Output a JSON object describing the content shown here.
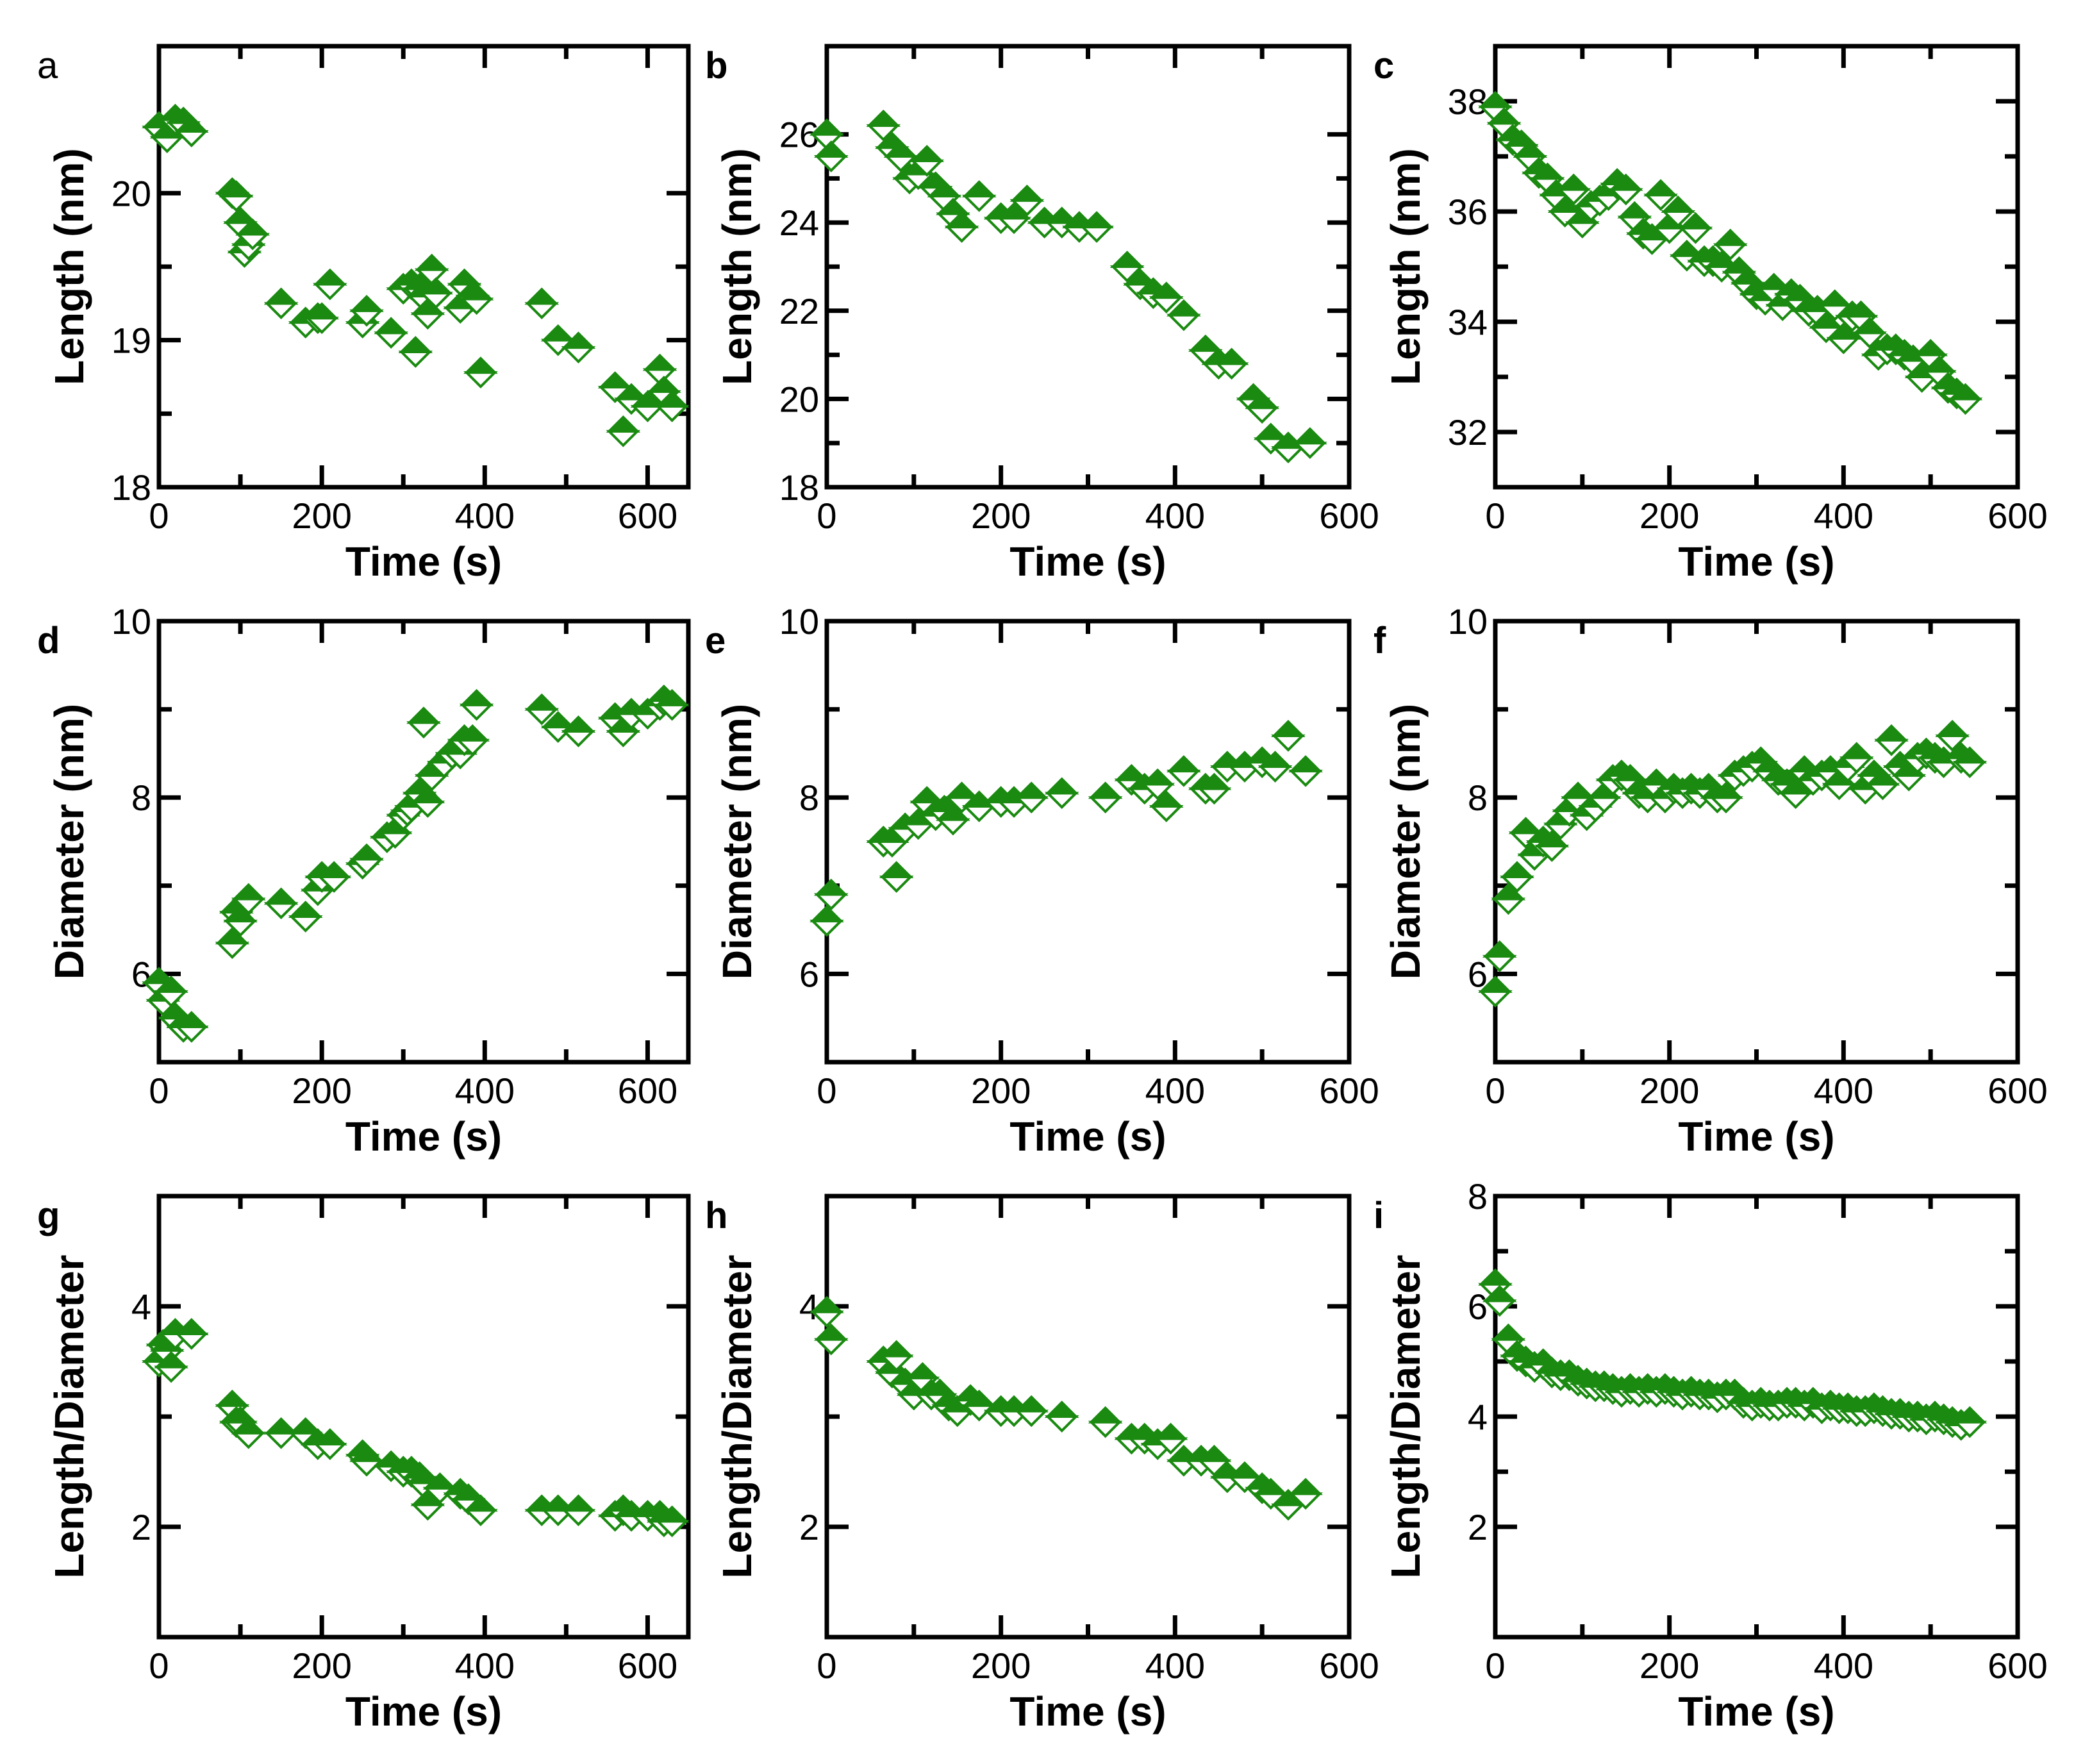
{
  "colors": {
    "marker": "#1a8a10",
    "axis": "#000000",
    "background": "#ffffff"
  },
  "marker_shape": "diamond-half-filled",
  "chart_data": [
    {
      "id": "a",
      "type": "scatter",
      "panel_label": "a",
      "xlabel": "Time (s)",
      "ylabel": "Length (nm)",
      "xlim": [
        0,
        650
      ],
      "ylim": [
        18,
        21
      ],
      "xticks": [
        0,
        200,
        400,
        600
      ],
      "xtick_labels": [
        "0",
        "200",
        "400",
        "600"
      ],
      "yticks": [
        18,
        19,
        20
      ],
      "ytick_labels": [
        "18",
        "19",
        "20"
      ],
      "x": [
        0,
        10,
        20,
        30,
        40,
        90,
        95,
        100,
        105,
        110,
        115,
        150,
        180,
        195,
        200,
        210,
        250,
        255,
        285,
        300,
        310,
        315,
        320,
        325,
        330,
        335,
        340,
        370,
        375,
        385,
        390,
        395,
        470,
        490,
        515,
        560,
        570,
        580,
        600,
        615,
        620,
        630
      ],
      "y": [
        20.45,
        20.38,
        20.5,
        20.48,
        20.42,
        20.0,
        19.98,
        19.8,
        19.6,
        19.65,
        19.72,
        19.25,
        19.12,
        19.15,
        19.15,
        19.38,
        19.12,
        19.2,
        19.05,
        19.35,
        19.38,
        18.92,
        19.35,
        19.3,
        19.18,
        19.48,
        19.32,
        19.22,
        19.38,
        19.3,
        19.28,
        18.78,
        19.25,
        19.0,
        18.95,
        18.68,
        18.38,
        18.6,
        18.55,
        18.8,
        18.65,
        18.55
      ]
    },
    {
      "id": "b",
      "type": "scatter",
      "panel_label": "b",
      "xlabel": "Time (s)",
      "ylabel": "Length (nm)",
      "xlim": [
        0,
        600
      ],
      "ylim": [
        18,
        28
      ],
      "xticks": [
        0,
        200,
        400,
        600
      ],
      "xtick_labels": [
        "0",
        "200",
        "400",
        "600"
      ],
      "yticks": [
        18,
        20,
        22,
        24,
        26
      ],
      "ytick_labels": [
        "18",
        "20",
        "22",
        "24",
        "26"
      ],
      "x": [
        0,
        5,
        65,
        75,
        85,
        95,
        105,
        115,
        125,
        135,
        145,
        155,
        175,
        200,
        215,
        230,
        250,
        270,
        290,
        310,
        345,
        360,
        375,
        390,
        410,
        435,
        450,
        465,
        490,
        500,
        510,
        530,
        555
      ],
      "y": [
        26.0,
        25.5,
        26.2,
        25.7,
        25.5,
        25.0,
        25.1,
        25.4,
        24.8,
        24.6,
        24.2,
        23.9,
        24.6,
        24.1,
        24.1,
        24.5,
        24.0,
        24.0,
        23.9,
        23.9,
        23.0,
        22.6,
        22.4,
        22.3,
        21.9,
        21.1,
        20.8,
        20.8,
        20.0,
        19.8,
        19.1,
        18.9,
        19.0
      ]
    },
    {
      "id": "c",
      "type": "scatter",
      "panel_label": "c",
      "xlabel": "Time (s)",
      "ylabel": "Length (nm)",
      "xlim": [
        0,
        600
      ],
      "ylim": [
        31,
        39
      ],
      "xticks": [
        0,
        200,
        400,
        600
      ],
      "xtick_labels": [
        "0",
        "200",
        "400",
        "600"
      ],
      "yticks": [
        32,
        34,
        36,
        38
      ],
      "ytick_labels": [
        "32",
        "34",
        "36",
        "38"
      ],
      "x": [
        0,
        10,
        20,
        30,
        40,
        50,
        60,
        70,
        80,
        90,
        100,
        110,
        120,
        130,
        140,
        150,
        160,
        170,
        180,
        190,
        200,
        210,
        220,
        230,
        240,
        250,
        260,
        270,
        280,
        290,
        300,
        310,
        320,
        330,
        340,
        350,
        360,
        370,
        380,
        390,
        400,
        410,
        420,
        430,
        440,
        450,
        460,
        470,
        480,
        490,
        500,
        510,
        520,
        530,
        540
      ],
      "y": [
        37.9,
        37.6,
        37.3,
        37.2,
        37.0,
        36.7,
        36.6,
        36.3,
        36.0,
        36.4,
        35.8,
        36.1,
        36.2,
        36.3,
        36.5,
        36.4,
        35.9,
        35.6,
        35.5,
        36.3,
        35.7,
        36.0,
        35.2,
        35.7,
        35.1,
        35.1,
        35.0,
        35.4,
        34.9,
        34.7,
        34.5,
        34.4,
        34.6,
        34.3,
        34.5,
        34.4,
        34.2,
        34.2,
        33.9,
        34.3,
        33.7,
        34.1,
        34.1,
        33.8,
        33.4,
        33.5,
        33.5,
        33.4,
        33.3,
        33.0,
        33.4,
        33.1,
        32.8,
        32.7,
        32.6
      ]
    },
    {
      "id": "d",
      "type": "scatter",
      "panel_label": "d",
      "xlabel": "Time (s)",
      "ylabel": "Diameter (nm)",
      "xlim": [
        0,
        650
      ],
      "ylim": [
        5,
        10
      ],
      "xticks": [
        0,
        200,
        400,
        600
      ],
      "xtick_labels": [
        "0",
        "200",
        "400",
        "600"
      ],
      "yticks": [
        6,
        8,
        10
      ],
      "ytick_labels": [
        "6",
        "8",
        "10"
      ],
      "x": [
        0,
        5,
        15,
        20,
        30,
        40,
        90,
        95,
        100,
        110,
        150,
        180,
        195,
        200,
        215,
        250,
        255,
        280,
        290,
        300,
        305,
        310,
        320,
        325,
        330,
        335,
        350,
        360,
        370,
        375,
        385,
        390,
        470,
        490,
        515,
        560,
        570,
        580,
        600,
        615,
        620,
        630
      ],
      "y": [
        5.9,
        5.7,
        5.8,
        5.5,
        5.4,
        5.4,
        6.35,
        6.7,
        6.6,
        6.85,
        6.8,
        6.65,
        6.95,
        7.1,
        7.1,
        7.25,
        7.3,
        7.55,
        7.6,
        7.8,
        7.85,
        7.9,
        8.05,
        8.85,
        7.95,
        8.25,
        8.4,
        8.5,
        8.5,
        8.65,
        8.65,
        9.05,
        9.0,
        8.8,
        8.75,
        8.9,
        8.75,
        8.95,
        8.95,
        9.05,
        9.1,
        9.05
      ]
    },
    {
      "id": "e",
      "type": "scatter",
      "panel_label": "e",
      "xlabel": "Time (s)",
      "ylabel": "Diameter (nm)",
      "xlim": [
        0,
        600
      ],
      "ylim": [
        5,
        10
      ],
      "xticks": [
        0,
        200,
        400,
        600
      ],
      "xtick_labels": [
        "0",
        "200",
        "400",
        "600"
      ],
      "yticks": [
        6,
        8,
        10
      ],
      "ytick_labels": [
        "6",
        "8",
        "10"
      ],
      "x": [
        0,
        5,
        65,
        75,
        80,
        90,
        105,
        115,
        125,
        135,
        145,
        155,
        175,
        200,
        215,
        235,
        270,
        320,
        350,
        365,
        380,
        390,
        410,
        435,
        445,
        460,
        480,
        500,
        515,
        530,
        550
      ],
      "y": [
        6.6,
        6.9,
        7.5,
        7.5,
        7.1,
        7.65,
        7.7,
        7.95,
        7.8,
        7.85,
        7.75,
        8.0,
        7.9,
        7.95,
        7.95,
        8.0,
        8.05,
        8.0,
        8.2,
        8.1,
        8.15,
        7.9,
        8.3,
        8.1,
        8.1,
        8.35,
        8.35,
        8.4,
        8.35,
        8.7,
        8.3
      ]
    },
    {
      "id": "f",
      "type": "scatter",
      "panel_label": "f",
      "xlabel": "Time (s)",
      "ylabel": "Diameter (nm)",
      "xlim": [
        0,
        600
      ],
      "ylim": [
        5,
        10
      ],
      "xticks": [
        0,
        200,
        400,
        600
      ],
      "xtick_labels": [
        "0",
        "200",
        "400",
        "600"
      ],
      "yticks": [
        6,
        8,
        10
      ],
      "ytick_labels": [
        "6",
        "8",
        "10"
      ],
      "x": [
        0,
        5,
        15,
        25,
        35,
        45,
        55,
        65,
        75,
        85,
        95,
        105,
        115,
        125,
        135,
        145,
        155,
        165,
        175,
        185,
        195,
        205,
        215,
        225,
        235,
        245,
        255,
        265,
        275,
        285,
        295,
        305,
        315,
        325,
        335,
        345,
        355,
        365,
        375,
        385,
        395,
        405,
        415,
        425,
        435,
        445,
        455,
        465,
        475,
        485,
        495,
        505,
        515,
        525,
        535,
        545
      ],
      "y": [
        5.8,
        6.2,
        6.85,
        7.1,
        7.6,
        7.35,
        7.5,
        7.45,
        7.7,
        7.85,
        8.0,
        7.8,
        7.9,
        8.0,
        8.2,
        8.25,
        8.2,
        8.05,
        8.0,
        8.15,
        8.0,
        8.1,
        8.05,
        8.1,
        8.05,
        8.1,
        8.0,
        8.0,
        8.25,
        8.3,
        8.35,
        8.4,
        8.3,
        8.2,
        8.15,
        8.05,
        8.3,
        8.2,
        8.25,
        8.3,
        8.15,
        8.35,
        8.45,
        8.1,
        8.25,
        8.15,
        8.65,
        8.35,
        8.25,
        8.45,
        8.5,
        8.45,
        8.4,
        8.7,
        8.45,
        8.4
      ]
    },
    {
      "id": "g",
      "type": "scatter",
      "panel_label": "g",
      "xlabel": "Time (s)",
      "ylabel": "Length/Diameter",
      "xlim": [
        0,
        650
      ],
      "ylim": [
        1,
        5
      ],
      "xticks": [
        0,
        200,
        400,
        600
      ],
      "xtick_labels": [
        "0",
        "200",
        "400",
        "600"
      ],
      "yticks": [
        2,
        4
      ],
      "ytick_labels": [
        "2",
        "4"
      ],
      "x": [
        0,
        5,
        10,
        15,
        20,
        40,
        90,
        95,
        100,
        110,
        150,
        180,
        195,
        210,
        250,
        255,
        285,
        300,
        310,
        320,
        325,
        330,
        345,
        370,
        380,
        395,
        470,
        490,
        515,
        560,
        570,
        580,
        600,
        615,
        620,
        630
      ],
      "y": [
        3.5,
        3.65,
        3.6,
        3.45,
        3.75,
        3.75,
        3.1,
        2.95,
        2.95,
        2.85,
        2.85,
        2.85,
        2.75,
        2.75,
        2.65,
        2.6,
        2.55,
        2.5,
        2.5,
        2.45,
        2.4,
        2.2,
        2.35,
        2.3,
        2.25,
        2.15,
        2.15,
        2.15,
        2.15,
        2.1,
        2.15,
        2.1,
        2.1,
        2.1,
        2.05,
        2.05
      ]
    },
    {
      "id": "h",
      "type": "scatter",
      "panel_label": "h",
      "xlabel": "Time (s)",
      "ylabel": "Length/Diameter",
      "xlim": [
        0,
        600
      ],
      "ylim": [
        1,
        5
      ],
      "xticks": [
        0,
        200,
        400,
        600
      ],
      "xtick_labels": [
        "0",
        "200",
        "400",
        "600"
      ],
      "yticks": [
        2,
        4
      ],
      "ytick_labels": [
        "2",
        "4"
      ],
      "x": [
        0,
        5,
        65,
        75,
        80,
        90,
        100,
        110,
        120,
        130,
        140,
        150,
        165,
        175,
        200,
        215,
        235,
        270,
        320,
        350,
        365,
        380,
        395,
        410,
        430,
        445,
        460,
        480,
        500,
        510,
        530,
        550
      ],
      "y": [
        3.95,
        3.7,
        3.5,
        3.4,
        3.55,
        3.3,
        3.2,
        3.35,
        3.2,
        3.2,
        3.1,
        3.05,
        3.15,
        3.1,
        3.05,
        3.05,
        3.05,
        3.0,
        2.95,
        2.8,
        2.8,
        2.75,
        2.8,
        2.6,
        2.6,
        2.6,
        2.45,
        2.45,
        2.35,
        2.3,
        2.2,
        2.3
      ]
    },
    {
      "id": "i",
      "type": "scatter",
      "panel_label": "i",
      "xlabel": "Time (s)",
      "ylabel": "Length/Diameter",
      "xlim": [
        0,
        600
      ],
      "ylim": [
        0,
        8
      ],
      "xticks": [
        0,
        200,
        400,
        600
      ],
      "xtick_labels": [
        "0",
        "200",
        "400",
        "600"
      ],
      "yticks": [
        2,
        4,
        6,
        8
      ],
      "ytick_labels": [
        "2",
        "4",
        "6",
        "8"
      ],
      "x": [
        0,
        5,
        15,
        25,
        35,
        45,
        55,
        65,
        75,
        85,
        95,
        105,
        115,
        125,
        135,
        145,
        155,
        165,
        175,
        185,
        195,
        205,
        215,
        225,
        235,
        245,
        255,
        265,
        275,
        285,
        295,
        305,
        315,
        325,
        335,
        345,
        355,
        365,
        375,
        385,
        395,
        405,
        415,
        425,
        435,
        445,
        455,
        465,
        475,
        485,
        495,
        505,
        515,
        525,
        535,
        545
      ],
      "y": [
        6.4,
        6.1,
        5.4,
        5.1,
        5.0,
        4.9,
        4.95,
        4.8,
        4.75,
        4.75,
        4.65,
        4.6,
        4.55,
        4.55,
        4.5,
        4.45,
        4.5,
        4.45,
        4.5,
        4.45,
        4.5,
        4.45,
        4.4,
        4.45,
        4.4,
        4.4,
        4.35,
        4.4,
        4.4,
        4.25,
        4.2,
        4.25,
        4.2,
        4.2,
        4.25,
        4.25,
        4.2,
        4.25,
        4.15,
        4.2,
        4.15,
        4.15,
        4.1,
        4.1,
        4.15,
        4.1,
        4.05,
        4.05,
        4.0,
        4.0,
        3.95,
        4.0,
        3.95,
        3.9,
        3.85,
        3.9
      ]
    }
  ]
}
